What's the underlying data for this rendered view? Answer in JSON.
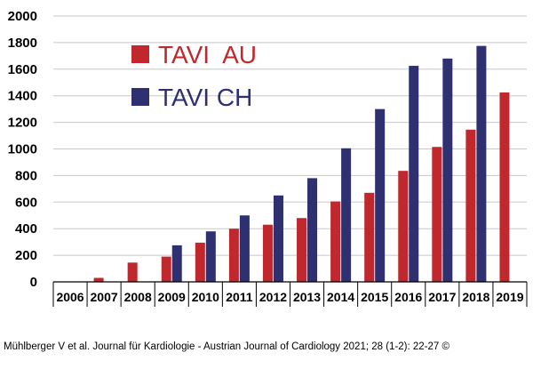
{
  "chart_data": {
    "type": "bar",
    "title": "",
    "xlabel": "",
    "ylabel": "",
    "ylim": [
      0,
      2000
    ],
    "yticks": [
      0,
      200,
      400,
      600,
      800,
      1000,
      1200,
      1400,
      1600,
      1800,
      2000
    ],
    "ytick_labels": [
      "0",
      "200",
      "400",
      "600",
      "800",
      "1000",
      "1200",
      "1400",
      "1600",
      "1800",
      "2000"
    ],
    "categories": [
      "2006",
      "2007",
      "2008",
      "2009",
      "2010",
      "2011",
      "2012",
      "2013",
      "2014",
      "2015",
      "2016",
      "2017",
      "2018",
      "2019"
    ],
    "grid": true,
    "legend_position": "top-left",
    "series": [
      {
        "name": "TAVI  AU",
        "color": "#c0282d",
        "values": [
          0,
          30,
          145,
          190,
          295,
          400,
          430,
          480,
          605,
          670,
          835,
          1015,
          1145,
          1425
        ]
      },
      {
        "name": "TAVI CH",
        "color": "#2e3070",
        "values": [
          0,
          0,
          0,
          275,
          380,
          500,
          650,
          780,
          1005,
          1300,
          1625,
          1680,
          1775,
          null
        ]
      }
    ]
  },
  "citation": "Mühlberger V et al. Journal für Kardiologie - Austrian Journal of Cardiology 2021; 28 (1-2): 22-27 ©"
}
